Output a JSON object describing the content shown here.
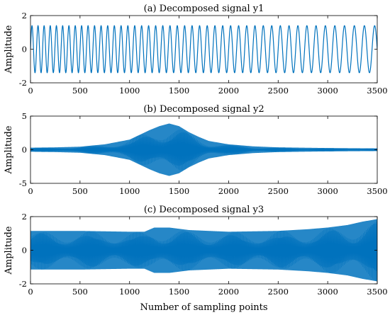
{
  "chart_data": [
    {
      "type": "line",
      "title": "(a) Decomposed signal y1",
      "xlabel": "",
      "ylabel": "Amplitude",
      "xlim": [
        0,
        3500
      ],
      "ylim": [
        -2,
        2
      ],
      "xticks": [
        "0",
        "500",
        "1000",
        "1500",
        "2000",
        "2500",
        "3000",
        "3500"
      ],
      "yticks": [
        "-2",
        "0",
        "2"
      ],
      "line_color": "#0072BD",
      "amplitude": 1.4,
      "periods_visible": 47,
      "description_of_shape": "chirp",
      "series": [
        {
          "x": [
            0,
            500,
            1000,
            1500,
            2000,
            2500,
            3000,
            3500
          ],
          "envelope": [
            1.4,
            1.4,
            1.4,
            1.4,
            1.4,
            1.4,
            1.4,
            1.4
          ]
        }
      ]
    },
    {
      "type": "line",
      "title": "(b) Decomposed signal y2",
      "xlabel": "",
      "ylabel": "Amplitude",
      "xlim": [
        0,
        3500
      ],
      "ylim": [
        -5,
        5
      ],
      "xticks": [
        "0",
        "500",
        "1000",
        "1500",
        "2000",
        "2500",
        "3000",
        "3500"
      ],
      "yticks": [
        "-5",
        "0",
        "5"
      ],
      "line_color": "#0072BD",
      "series": [
        {
          "x": [
            0,
            250,
            500,
            750,
            1000,
            1100,
            1200,
            1300,
            1400,
            1500,
            1600,
            1700,
            1800,
            2000,
            2250,
            2500,
            3000,
            3500
          ],
          "envelope": [
            0.3,
            0.35,
            0.45,
            0.8,
            1.5,
            2.2,
            2.9,
            3.5,
            3.9,
            3.5,
            2.6,
            1.9,
            1.3,
            0.8,
            0.5,
            0.35,
            0.25,
            0.2
          ]
        }
      ]
    },
    {
      "type": "line",
      "title": "(c) Decomposed signal y3",
      "xlabel": "Number of sampling points",
      "ylabel": "Amplitude",
      "xlim": [
        0,
        3500
      ],
      "ylim": [
        -2,
        2
      ],
      "xticks": [
        "0",
        "500",
        "1000",
        "1500",
        "2000",
        "2500",
        "3000",
        "3500"
      ],
      "yticks": [
        "-2",
        "0",
        "2"
      ],
      "line_color": "#0072BD",
      "series": [
        {
          "x": [
            0,
            500,
            1000,
            1150,
            1250,
            1400,
            1600,
            2000,
            2500,
            2800,
            3000,
            3200,
            3350,
            3500
          ],
          "envelope": [
            1.15,
            1.15,
            1.1,
            1.1,
            1.35,
            1.35,
            1.2,
            1.1,
            1.15,
            1.25,
            1.35,
            1.5,
            1.7,
            1.85
          ]
        }
      ]
    }
  ]
}
